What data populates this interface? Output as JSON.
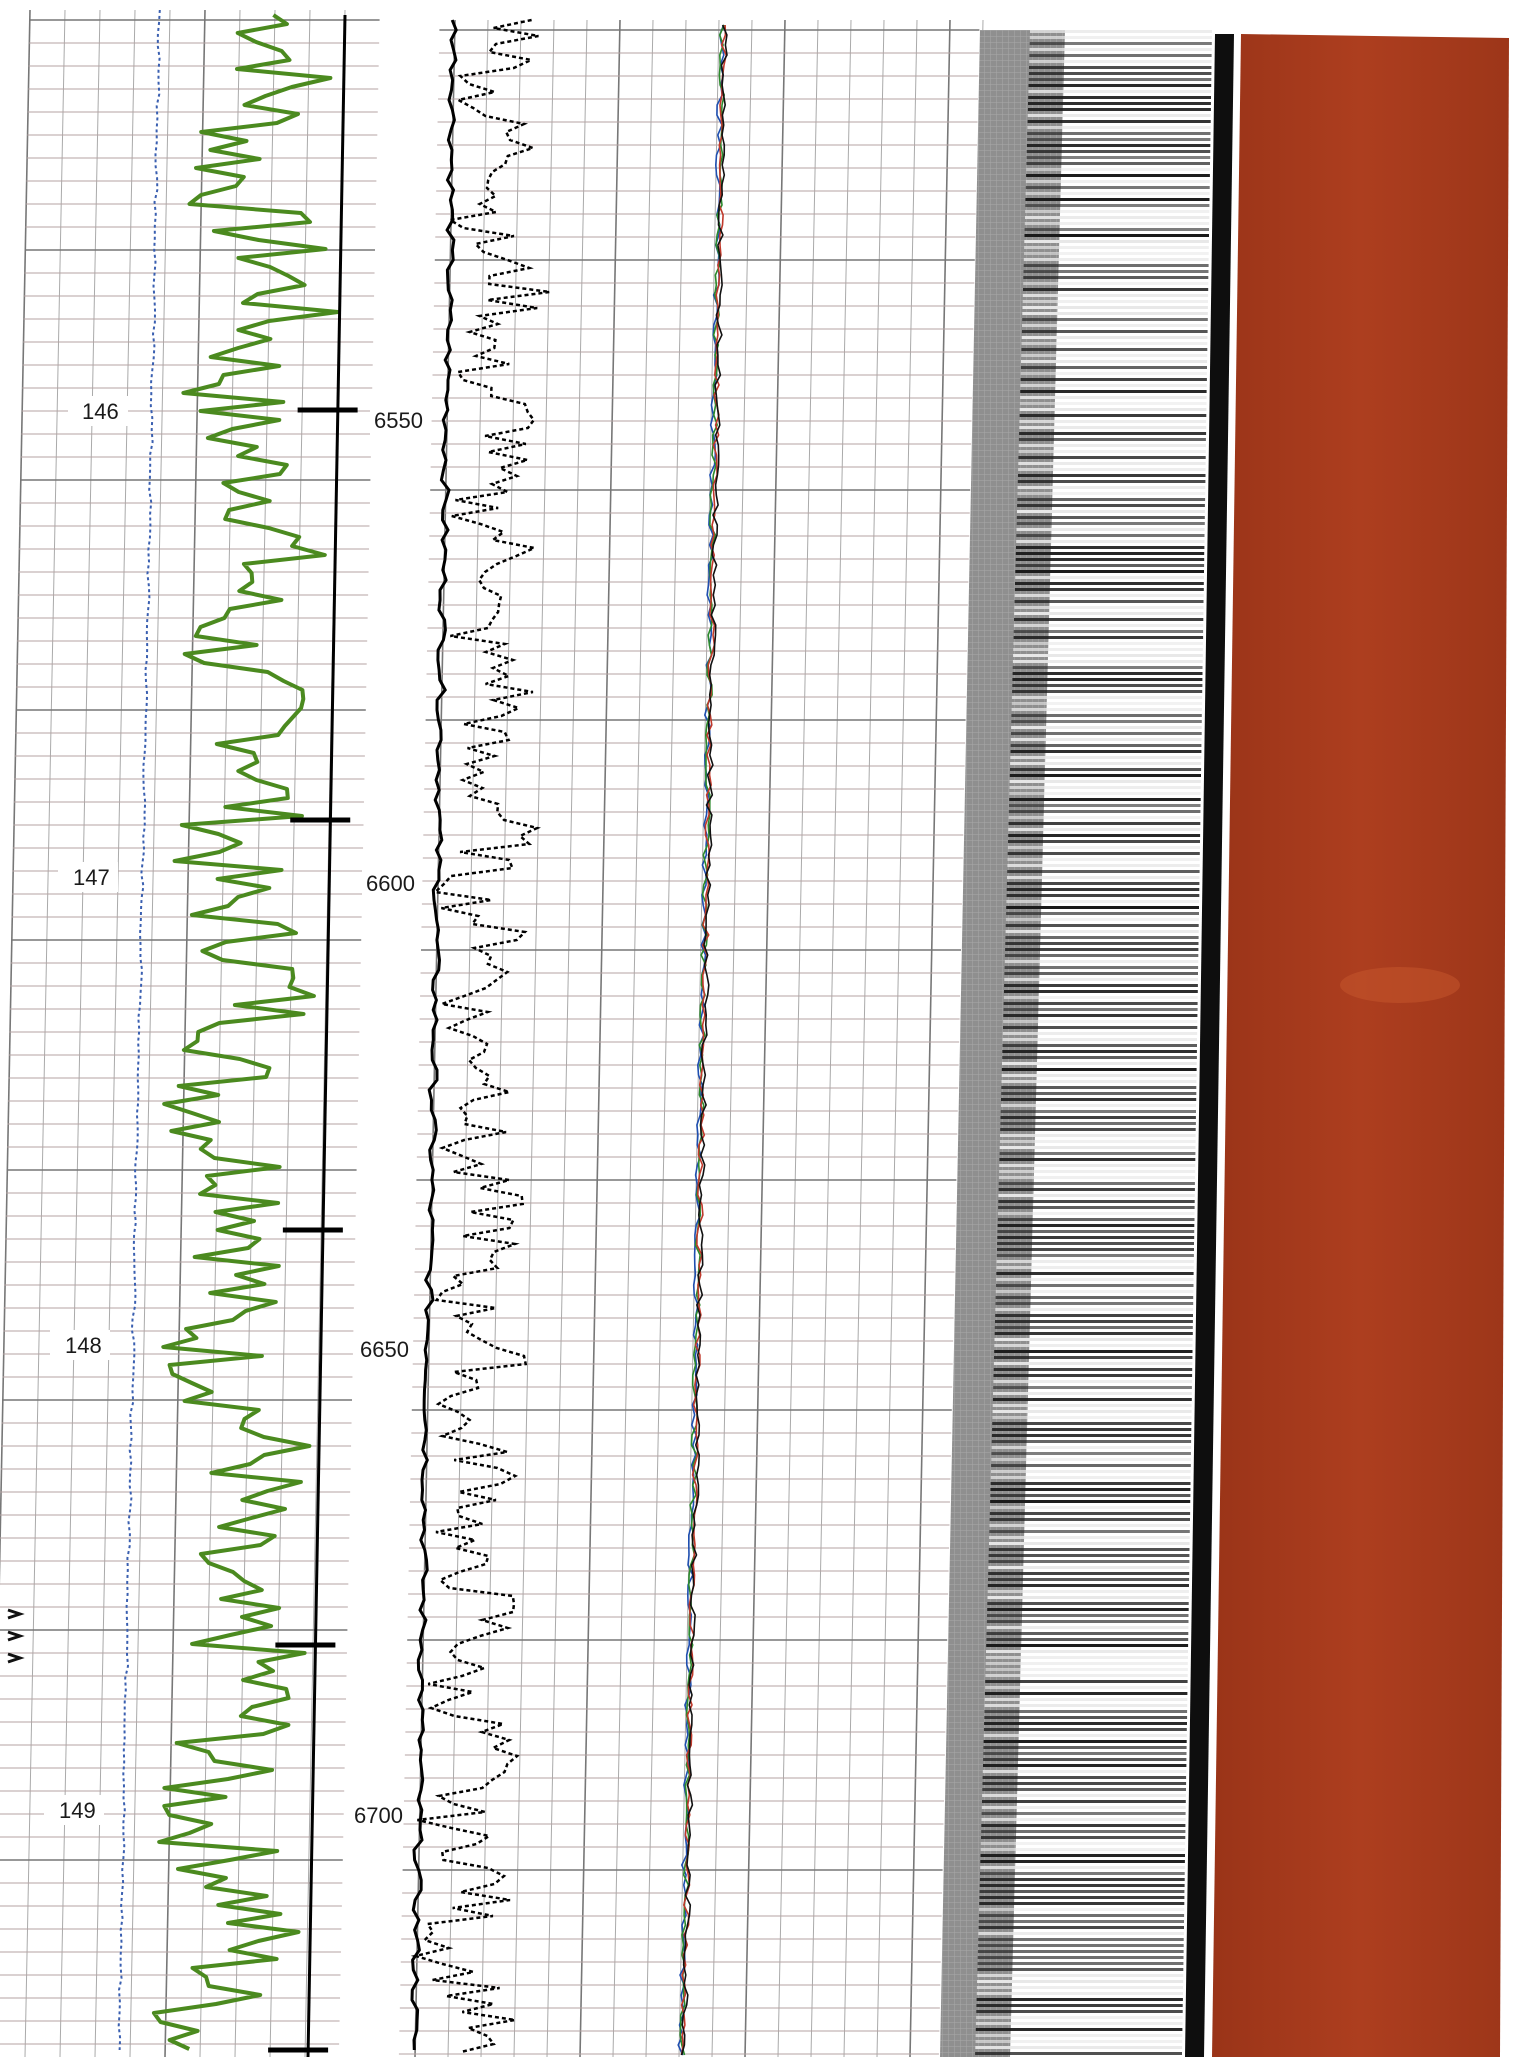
{
  "left_track": {
    "labels": [
      "146",
      "147",
      "148",
      "149"
    ]
  },
  "depth_track": {
    "labels": [
      "6550",
      "6600",
      "6650",
      "6700"
    ]
  },
  "colors": {
    "grid_minor": "#9d9d9d",
    "grid_major": "#6b6b6b",
    "grid_red": "#b07a7a",
    "gamma_curve": "#4b8a1f",
    "dotted_blue": "#3a5fb0",
    "resistivity_curve": "#000000",
    "image_gray": "#8e8e8e",
    "image_dark": "#111111",
    "core_photo": "#a33a1c"
  },
  "icons": [
    "depth-tick-marks-icon",
    "arrow-marks-icon"
  ]
}
